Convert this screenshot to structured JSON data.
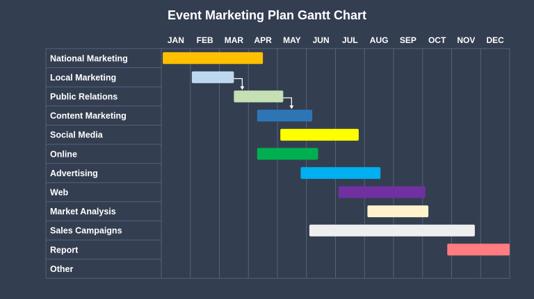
{
  "chart_data": {
    "type": "gantt",
    "title": "Event Marketing Plan Gantt Chart",
    "months": [
      "JAN",
      "FEB",
      "MAR",
      "APR",
      "MAY",
      "JUN",
      "JUL",
      "AUG",
      "SEP",
      "OCT",
      "NOV",
      "DEC"
    ],
    "grid": true,
    "tasks": [
      {
        "name": "National Marketing",
        "start": 0.05,
        "end": 3.5,
        "color": "#ffc000"
      },
      {
        "name": "Local Marketing",
        "start": 1.05,
        "end": 2.5,
        "color": "#bdd7ee"
      },
      {
        "name": "Public Relations",
        "start": 2.5,
        "end": 4.2,
        "color": "#c5e0b4"
      },
      {
        "name": "Content Marketing",
        "start": 3.3,
        "end": 5.2,
        "color": "#2e75b6"
      },
      {
        "name": "Social Media",
        "start": 4.1,
        "end": 6.8,
        "color": "#ffff00"
      },
      {
        "name": "Online",
        "start": 3.3,
        "end": 5.4,
        "color": "#00b050"
      },
      {
        "name": "Advertising",
        "start": 4.8,
        "end": 7.55,
        "color": "#00b0f0"
      },
      {
        "name": "Web",
        "start": 6.1,
        "end": 9.1,
        "color": "#7030a0"
      },
      {
        "name": "Market Analysis",
        "start": 7.1,
        "end": 9.2,
        "color": "#fff2cc"
      },
      {
        "name": "Sales Campaigns",
        "start": 5.1,
        "end": 10.8,
        "color": "#eeeeee"
      },
      {
        "name": "Report",
        "start": 9.85,
        "end": 12.0,
        "color": "#ff7c80"
      },
      {
        "name": "Other",
        "start": null,
        "end": null,
        "color": null
      }
    ],
    "dependencies": [
      {
        "from": "Local Marketing",
        "to": "Public Relations"
      },
      {
        "from": "Public Relations",
        "to": "Content Marketing"
      }
    ]
  }
}
